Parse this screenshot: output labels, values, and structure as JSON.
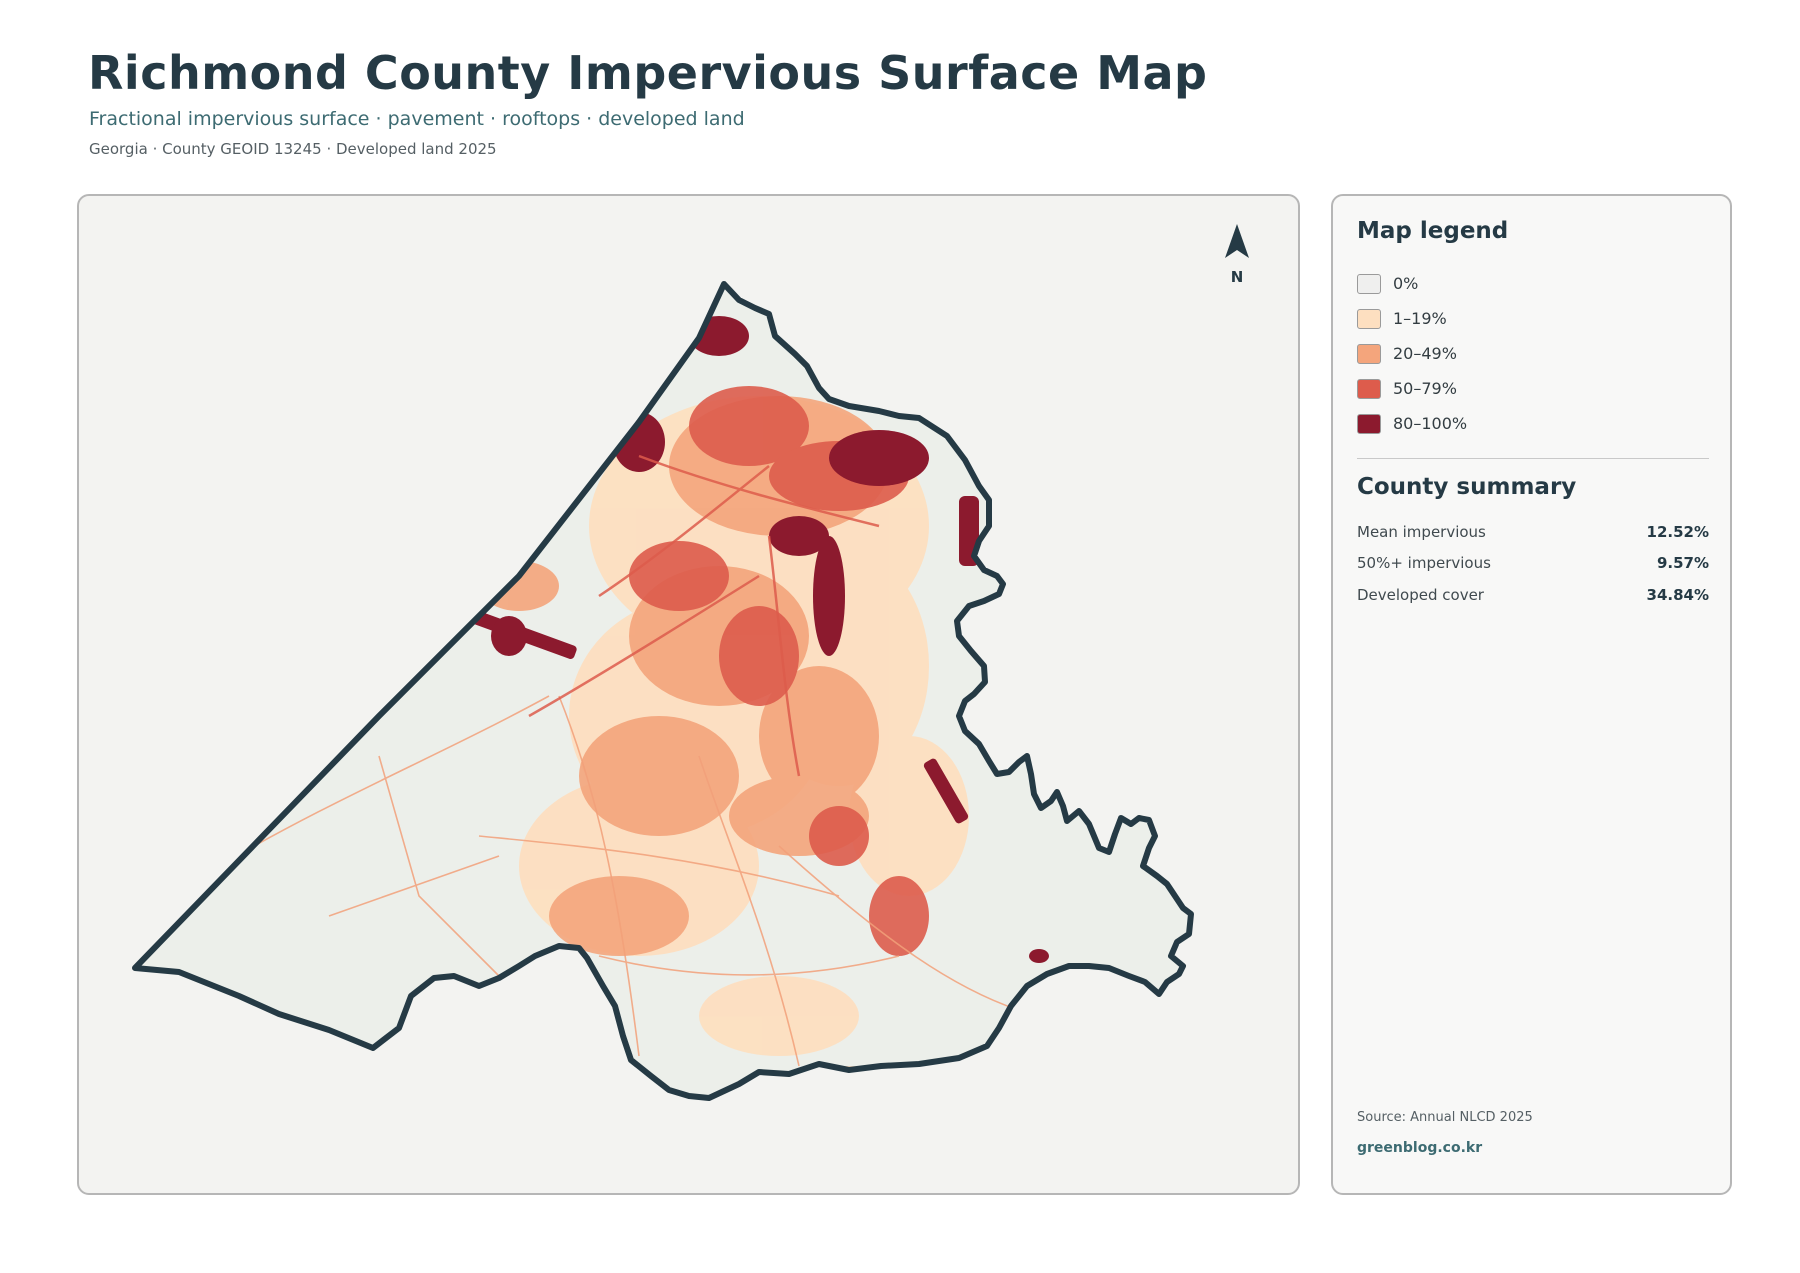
{
  "header": {
    "title": "Richmond County Impervious Surface Map",
    "subtitle": "Fractional impervious surface · pavement · rooftops · developed land",
    "meta": "Georgia · County GEOID 13245 · Developed land 2025"
  },
  "map": {
    "north_label": "N",
    "background_color": "#f3f3f1",
    "land_color": "#ecefea",
    "boundary_color": "#253a45"
  },
  "legend": {
    "title": "Map legend",
    "items": [
      {
        "label": "0%",
        "color": "#efefee"
      },
      {
        "label": "1–19%",
        "color": "#fddfc0"
      },
      {
        "label": "20–49%",
        "color": "#f4a57c"
      },
      {
        "label": "50–79%",
        "color": "#dd5c4c"
      },
      {
        "label": "80–100%",
        "color": "#8c1a2e"
      }
    ]
  },
  "summary": {
    "title": "County summary",
    "stats": [
      {
        "label": "Mean impervious",
        "value": "12.52%"
      },
      {
        "label": "50%+ impervious",
        "value": "9.57%"
      },
      {
        "label": "Developed cover",
        "value": "34.84%"
      }
    ]
  },
  "footer": {
    "source": "Source: Annual NLCD 2025",
    "site": "greenblog.co.kr"
  }
}
